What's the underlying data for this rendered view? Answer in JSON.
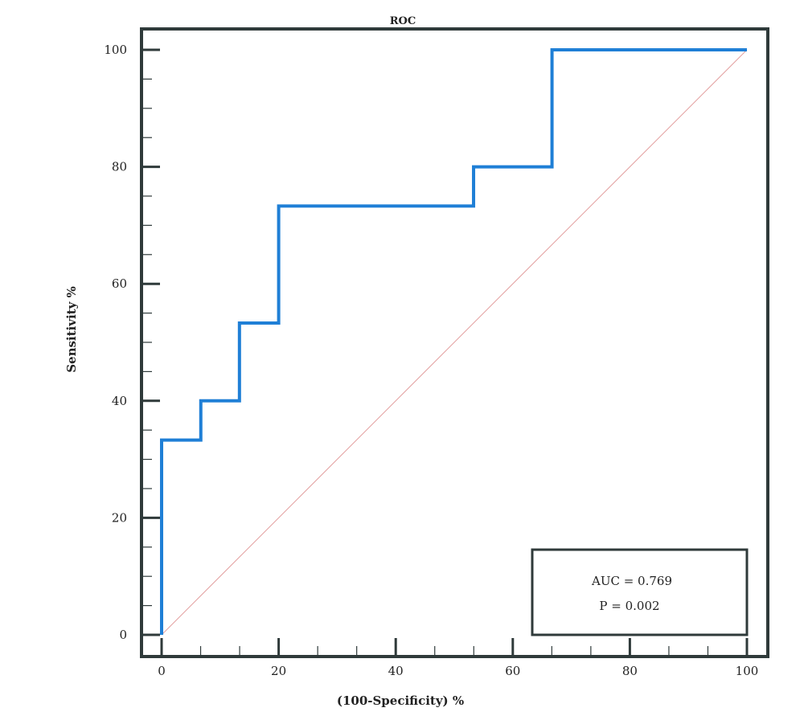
{
  "chart_data": {
    "type": "line",
    "title": "ROC",
    "xlabel": "(100-Specificity) %",
    "ylabel": "Sensitivity %",
    "xlim": [
      0,
      100
    ],
    "ylim": [
      0,
      100
    ],
    "x_ticks": [
      0,
      20,
      40,
      60,
      80,
      100
    ],
    "y_ticks": [
      0,
      20,
      40,
      60,
      80,
      100
    ],
    "grid": false,
    "legend": "none",
    "series": [
      {
        "color": "#1f7fd6",
        "style": "step",
        "points": [
          [
            0,
            0
          ],
          [
            0,
            33.3
          ],
          [
            6.7,
            33.3
          ],
          [
            6.7,
            40
          ],
          [
            13.3,
            40
          ],
          [
            13.3,
            53.3
          ],
          [
            20,
            53.3
          ],
          [
            20,
            73.3
          ],
          [
            53.3,
            73.3
          ],
          [
            53.3,
            80
          ],
          [
            66.7,
            80
          ],
          [
            66.7,
            100
          ],
          [
            100,
            100
          ]
        ]
      },
      {
        "color": "#e3a0a0",
        "style": "reference-diagonal",
        "points": [
          [
            0,
            0
          ],
          [
            100,
            100
          ]
        ]
      }
    ],
    "annotations": {
      "auc": "AUC = 0.769",
      "p": "P = 0.002"
    }
  }
}
